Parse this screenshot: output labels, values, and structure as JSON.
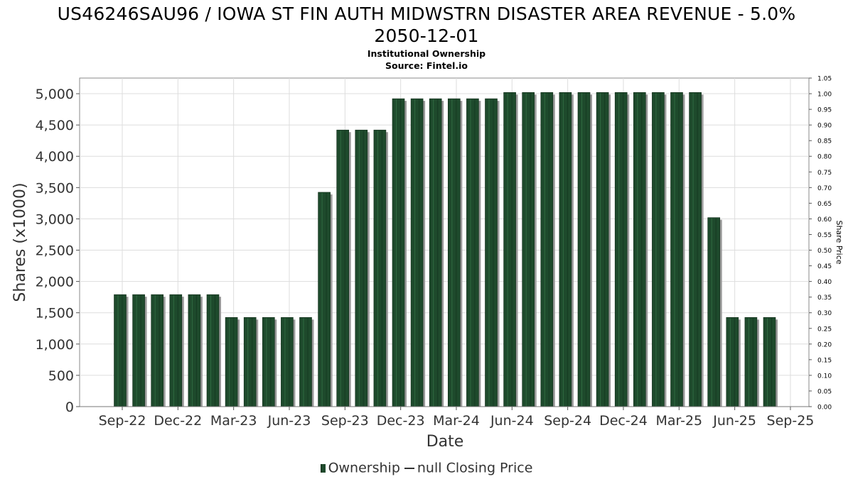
{
  "title_line1": "US46246SAU96 / IOWA ST FIN AUTH MIDWSTRN DISASTER AREA REVENUE - 5.0%",
  "title_line2": "2050-12-01",
  "subtitle": "Institutional Ownership",
  "source": "Source: Fintel.io",
  "legend": {
    "ownership": "Ownership",
    "price": "null Closing Price"
  },
  "colors": {
    "bar": "#1e4a2c",
    "bar_shadow": "#9a9a9a",
    "grid": "#dddddd",
    "frame": "#888888"
  },
  "chart_data": {
    "type": "bar",
    "xlabel": "Date",
    "ylabel": "Shares (x1000)",
    "y2label": "Share Price",
    "ylim": [
      0,
      5250
    ],
    "y2lim": [
      0,
      1.05
    ],
    "grid": true,
    "legend_position": "bottom",
    "yticks": [
      "0",
      "500",
      "1,000",
      "1,500",
      "2,000",
      "2,500",
      "3,000",
      "3,500",
      "4,000",
      "4,500",
      "5,000"
    ],
    "y2ticks": [
      "0.00",
      "0.05",
      "0.10",
      "0.15",
      "0.20",
      "0.25",
      "0.30",
      "0.35",
      "0.40",
      "0.45",
      "0.50",
      "0.55",
      "0.60",
      "0.65",
      "0.70",
      "0.75",
      "0.80",
      "0.85",
      "0.90",
      "0.95",
      "1.00",
      "1.05"
    ],
    "xticks": [
      "Sep-22",
      "Dec-22",
      "Mar-23",
      "Jun-23",
      "Sep-23",
      "Dec-23",
      "Mar-24",
      "Jun-24",
      "Sep-24",
      "Dec-24",
      "Mar-25",
      "Jun-25",
      "Sep-25"
    ],
    "series": [
      {
        "name": "Ownership",
        "values": [
          1790,
          1790,
          1790,
          1790,
          1790,
          1790,
          1425,
          1425,
          1425,
          1425,
          1425,
          3425,
          4420,
          4420,
          4420,
          4920,
          4920,
          4920,
          4920,
          4920,
          4920,
          5020,
          5020,
          5020,
          5020,
          5020,
          5020,
          5020,
          5020,
          5020,
          5020,
          5020,
          3020,
          1425,
          1425,
          1425
        ]
      }
    ]
  }
}
